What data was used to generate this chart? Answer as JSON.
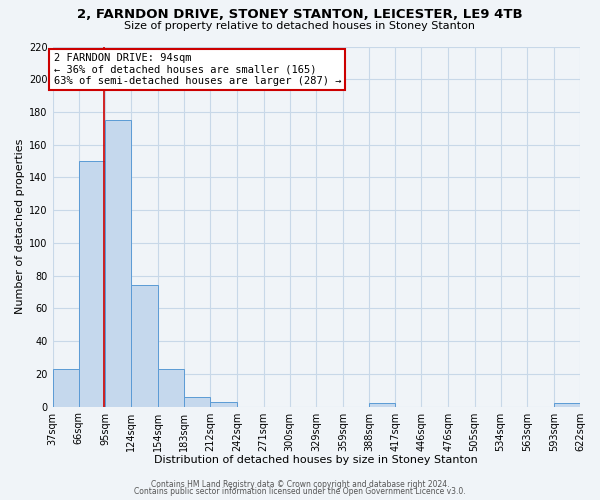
{
  "title": "2, FARNDON DRIVE, STONEY STANTON, LEICESTER, LE9 4TB",
  "subtitle": "Size of property relative to detached houses in Stoney Stanton",
  "xlabel": "Distribution of detached houses by size in Stoney Stanton",
  "ylabel": "Number of detached properties",
  "footer_line1": "Contains HM Land Registry data © Crown copyright and database right 2024.",
  "footer_line2": "Contains public sector information licensed under the Open Government Licence v3.0.",
  "bar_edges": [
    37,
    66,
    95,
    124,
    154,
    183,
    212,
    242,
    271,
    300,
    329,
    359,
    388,
    417,
    446,
    476,
    505,
    534,
    563,
    593,
    622
  ],
  "bar_heights": [
    23,
    150,
    175,
    74,
    23,
    6,
    3,
    0,
    0,
    0,
    0,
    0,
    2,
    0,
    0,
    0,
    0,
    0,
    0,
    2
  ],
  "bar_color": "#c5d8ed",
  "bar_edge_color": "#5b9bd5",
  "property_value": 94,
  "vline_color": "#cc0000",
  "annotation_title": "2 FARNDON DRIVE: 94sqm",
  "annotation_line1": "← 36% of detached houses are smaller (165)",
  "annotation_line2": "63% of semi-detached houses are larger (287) →",
  "annotation_box_edge": "#cc0000",
  "ylim": [
    0,
    220
  ],
  "yticks": [
    0,
    20,
    40,
    60,
    80,
    100,
    120,
    140,
    160,
    180,
    200,
    220
  ],
  "background_color": "#f0f4f8",
  "grid_color": "#c8d8e8",
  "title_fontsize": 9.5,
  "subtitle_fontsize": 8,
  "tick_fontsize": 7,
  "axis_label_fontsize": 8
}
